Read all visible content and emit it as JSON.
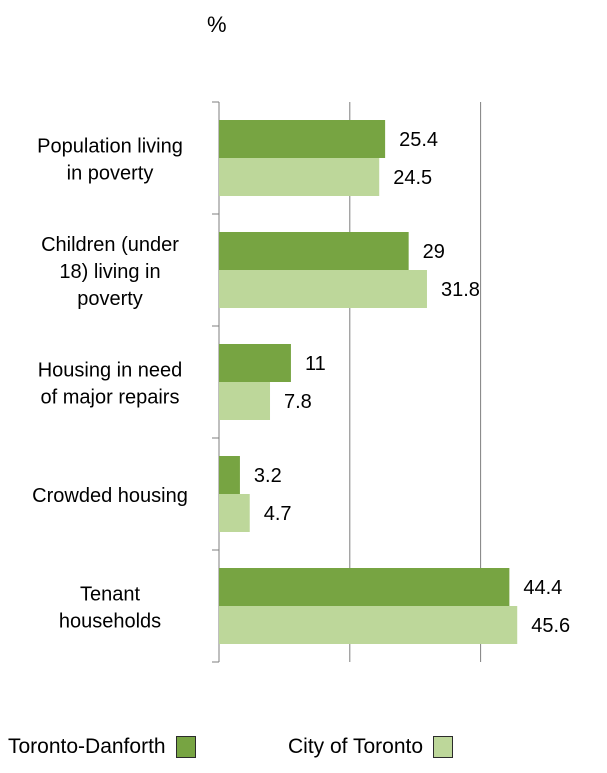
{
  "chart_data": {
    "type": "bar",
    "orientation": "horizontal",
    "unit_label": "%",
    "categories": [
      [
        "Population living",
        "in poverty"
      ],
      [
        "Children (under",
        "18) living in",
        "poverty"
      ],
      [
        "Housing in need",
        "of major repairs"
      ],
      [
        "Crowded housing"
      ],
      [
        "Tenant",
        "households"
      ]
    ],
    "series": [
      {
        "name": "Toronto-Danforth",
        "color": "#77a442",
        "values": [
          25.4,
          29,
          11,
          3.2,
          44.4
        ]
      },
      {
        "name": "City of Toronto",
        "color": "#bdd79a",
        "values": [
          24.5,
          31.8,
          7.8,
          4.7,
          45.6
        ]
      }
    ],
    "xlim": [
      0,
      50
    ],
    "gridlines": [
      0,
      20,
      40
    ],
    "grid": true,
    "legend_position": "bottom"
  }
}
